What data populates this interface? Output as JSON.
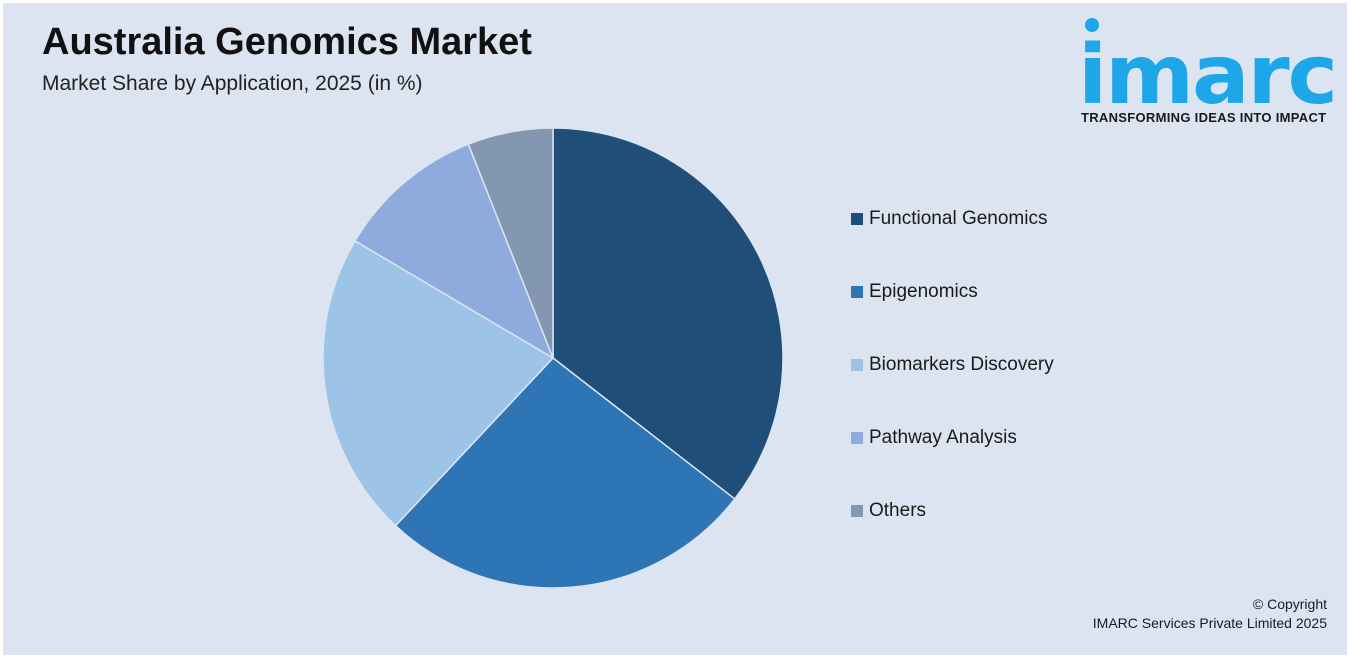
{
  "header": {
    "title": "Australia Genomics Market",
    "subtitle": "Market Share by Application, 2025 (in %)"
  },
  "brand": {
    "logo_text": "imarc",
    "tagline": "TRANSFORMING IDEAS INTO IMPACT",
    "logo_color": "#1da7e8"
  },
  "chart_data": {
    "type": "pie",
    "title": "Australia Genomics Market",
    "subtitle": "Market Share by Application, 2025 (in %)",
    "categories": [
      "Functional Genomics",
      "Epigenomics",
      "Biomarkers Discovery",
      "Pathway Analysis",
      "Others"
    ],
    "values": [
      35.5,
      26.5,
      21.5,
      10.5,
      6.0
    ],
    "colors": [
      "#1f4e79",
      "#2e75b6",
      "#9dc3e6",
      "#8faadc",
      "#8497b0"
    ],
    "start_angle_deg": 0,
    "direction": "clockwise",
    "legend_position": "right"
  },
  "footer": {
    "copyright_line1": "© Copyright",
    "copyright_line2": "IMARC Services Private Limited 2025"
  }
}
